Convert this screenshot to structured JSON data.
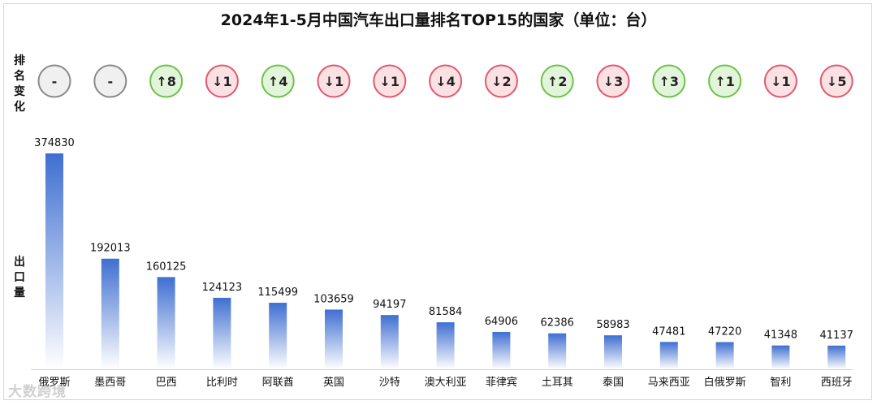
{
  "chart_data": {
    "type": "bar",
    "title": "2024年1-5月中国汽车出口量排名TOP15的国家（单位：台）",
    "rank_label": "排名变化",
    "ylabel": "出口量",
    "categories": [
      "俄罗斯",
      "墨西哥",
      "巴西",
      "比利时",
      "阿联酋",
      "英国",
      "沙特",
      "澳大利亚",
      "菲律宾",
      "土耳其",
      "泰国",
      "马来西亚",
      "白俄罗斯",
      "智利",
      "西班牙"
    ],
    "values": [
      374830,
      192013,
      160125,
      124123,
      115499,
      103659,
      94197,
      81584,
      64906,
      62386,
      58983,
      47481,
      47220,
      41348,
      41137
    ],
    "rank_change": [
      "-",
      "-",
      "↑8",
      "↓1",
      "↑4",
      "↓1",
      "↓1",
      "↓4",
      "↓2",
      "↑2",
      "↓3",
      "↑3",
      "↑1",
      "↓1",
      "↓5"
    ],
    "ylim": [
      0,
      380000
    ],
    "colors": {
      "bar_top": "#3f6fd1",
      "bar_bottom": "#ffffff",
      "up": "#6cc24a",
      "up_fill": "#e2f5da",
      "down": "#e05a6e",
      "down_fill": "#fbe0e4",
      "neutral": "#8a8a8a",
      "neutral_fill": "#f0f0f0"
    }
  },
  "watermark": "大数跨境"
}
